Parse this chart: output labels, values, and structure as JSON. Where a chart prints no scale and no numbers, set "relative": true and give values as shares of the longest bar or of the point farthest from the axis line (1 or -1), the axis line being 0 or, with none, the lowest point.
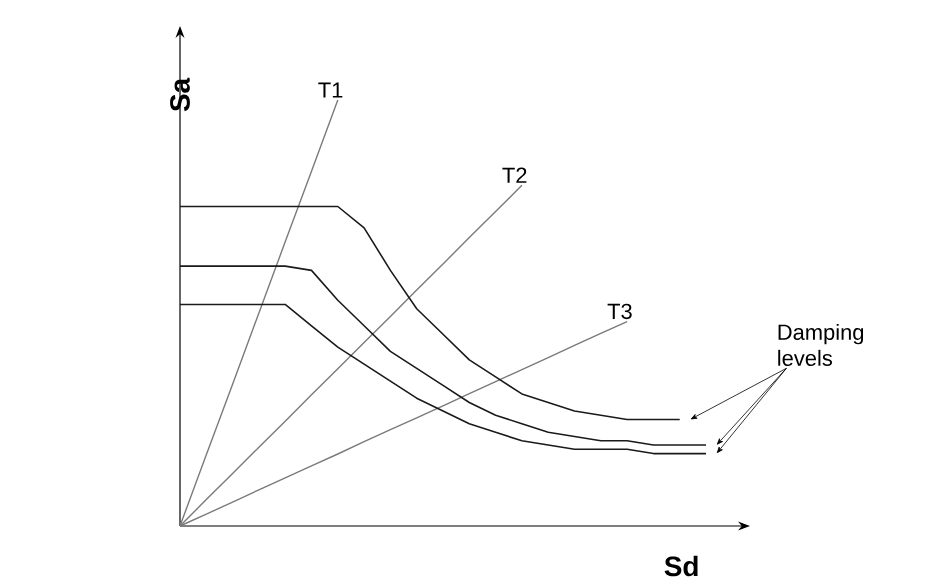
{
  "chart_data": {
    "type": "line",
    "relative": true,
    "xlabel": "Sd",
    "ylabel": "Sa",
    "annotations": [
      "Damping levels"
    ],
    "categories": [
      null,
      null,
      null,
      null,
      null,
      null,
      null,
      null,
      null,
      null,
      null,
      null,
      null,
      null,
      null,
      null,
      null,
      null,
      null,
      null,
      null
    ],
    "series": [
      {
        "name": "T1",
        "color": "#7a7a7a",
        "values": [
          0,
          0.167,
          0.333,
          0.5,
          0.667,
          0.833,
          1.0,
          null,
          null,
          null,
          null,
          null,
          null,
          null,
          null,
          null,
          null,
          null,
          null,
          null,
          null
        ]
      },
      {
        "name": "T2",
        "color": "#7a7a7a",
        "values": [
          0,
          0.062,
          0.123,
          0.185,
          0.246,
          0.308,
          0.369,
          0.431,
          0.492,
          0.554,
          0.615,
          0.677,
          0.738,
          0.8,
          null,
          null,
          null,
          null,
          null,
          null,
          null
        ]
      },
      {
        "name": "T3",
        "color": "#7a7a7a",
        "values": [
          0,
          0.028,
          0.056,
          0.085,
          0.113,
          0.141,
          0.169,
          0.198,
          0.226,
          0.254,
          0.282,
          0.311,
          0.339,
          0.367,
          0.395,
          0.424,
          0.452,
          0.48,
          null,
          null,
          null
        ]
      },
      {
        "color": "#1a1a1a",
        "values": [
          0.75,
          0.75,
          0.75,
          0.75,
          0.75,
          0.75,
          0.75,
          0.7,
          0.6,
          0.51,
          0.45,
          0.39,
          0.35,
          0.31,
          0.29,
          0.27,
          0.26,
          0.25,
          0.25,
          0.25,
          null
        ]
      },
      {
        "color": "#1a1a1a",
        "values": [
          0.61,
          0.61,
          0.61,
          0.61,
          0.61,
          0.6,
          0.53,
          0.47,
          0.41,
          0.37,
          0.33,
          0.29,
          0.26,
          0.24,
          0.22,
          0.21,
          0.2,
          0.2,
          0.19,
          0.19,
          0.19
        ]
      },
      {
        "color": "#1a1a1a",
        "values": [
          0.52,
          0.52,
          0.52,
          0.52,
          0.52,
          0.47,
          0.42,
          0.38,
          0.34,
          0.3,
          0.27,
          0.24,
          0.22,
          0.2,
          0.19,
          0.18,
          0.18,
          0.18,
          0.17,
          0.17,
          0.17
        ]
      }
    ]
  }
}
